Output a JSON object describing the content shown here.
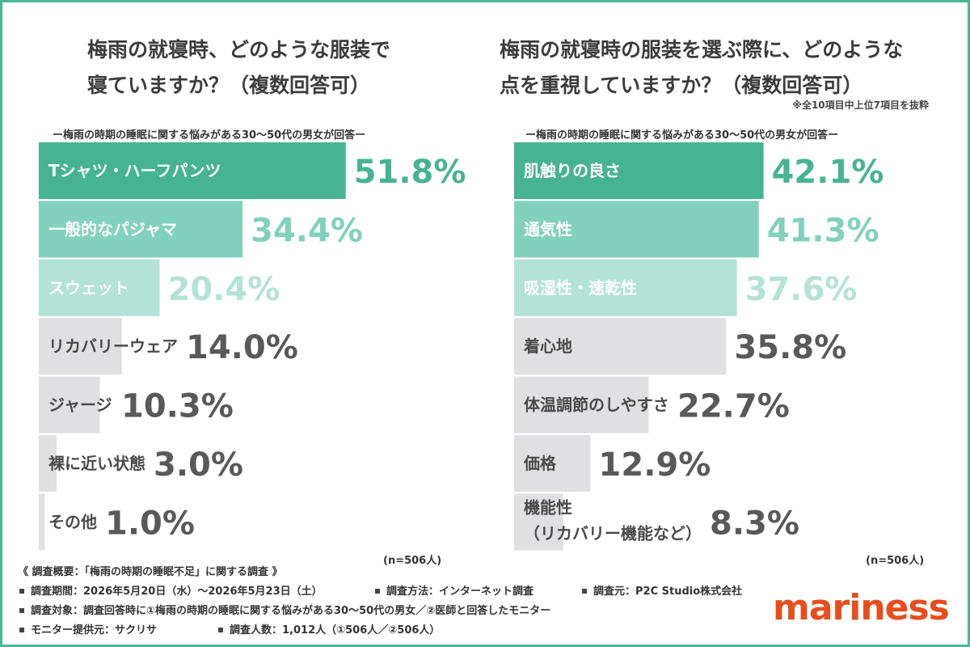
{
  "colors": {
    "border": "#4db79a",
    "logo": "#e64e1e"
  },
  "left_chart": {
    "title": "梅雨の就寝時、どのような服装で\n寝ていますか？（複数回答可）",
    "subtitle": "ー梅雨の時期の睡眠に関する悩みがある30〜50代の男女が回答ー",
    "n_label": "(n=506人)"
  },
  "right_chart": {
    "title": "梅雨の就寝時の服装を選ぶ際に、どのような\n点を重視していますか？（複数回答可）",
    "note": "※全10項目中上位7項目を抜粋",
    "subtitle": "ー梅雨の時期の睡眠に関する悩みがある30〜50代の男女が回答ー",
    "n_label": "(n=506人)"
  },
  "chart_data": [
    {
      "type": "bar",
      "orientation": "horizontal",
      "title": "梅雨の就寝時、どのような服装で寝ていますか？（複数回答可）",
      "categories": [
        "Tシャツ・ハーフパンツ",
        "一般的なパジャマ",
        "スウェット",
        "リカバリーウェア",
        "ジャージ",
        "裸に近い状態",
        "その他"
      ],
      "values": [
        51.8,
        34.4,
        20.4,
        14.0,
        10.3,
        3.0,
        1.0
      ],
      "value_labels": [
        "51.8%",
        "34.4%",
        "20.4%",
        "14.0%",
        "10.3%",
        "3.0%",
        "1.0%"
      ],
      "bar_colors": [
        "#46b492",
        "#82d1bc",
        "#b3e3d6",
        "#e0dfe1",
        "#e0dfe1",
        "#e0dfe1",
        "#e0dfe1"
      ],
      "label_colors": [
        "#ffffff",
        "#ffffff",
        "#ffffff",
        "#4a4a4a",
        "#4a4a4a",
        "#4a4a4a",
        "#4a4a4a"
      ],
      "value_colors": [
        "#46b492",
        "#82d1bc",
        "#b3e3d6",
        "#595959",
        "#595959",
        "#595959",
        "#595959"
      ],
      "xlim": [
        0,
        100
      ],
      "grid": false
    },
    {
      "type": "bar",
      "orientation": "horizontal",
      "title": "梅雨の就寝時の服装を選ぶ際に、どのような点を重視していますか？（複数回答可）",
      "categories": [
        "肌触りの良さ",
        "通気性",
        "吸湿性・速乾性",
        "着心地",
        "体温調節のしやすさ",
        "価格",
        "機能性\n（リカバリー機能など）"
      ],
      "values": [
        42.1,
        41.3,
        37.6,
        35.8,
        22.7,
        12.9,
        8.3
      ],
      "value_labels": [
        "42.1%",
        "41.3%",
        "37.6%",
        "35.8%",
        "22.7%",
        "12.9%",
        "8.3%"
      ],
      "bar_colors": [
        "#46b492",
        "#82d1bc",
        "#b3e3d6",
        "#e0dfe1",
        "#e0dfe1",
        "#e0dfe1",
        "#e0dfe1"
      ],
      "label_colors": [
        "#ffffff",
        "#ffffff",
        "#ffffff",
        "#4a4a4a",
        "#4a4a4a",
        "#4a4a4a",
        "#4a4a4a"
      ],
      "value_colors": [
        "#46b492",
        "#82d1bc",
        "#b3e3d6",
        "#595959",
        "#595959",
        "#595959",
        "#595959"
      ],
      "xlim": [
        0,
        100
      ],
      "grid": false
    }
  ],
  "footer": {
    "summary": "《 調査概要：「梅雨の時期の睡眠不足」に関する調査 》",
    "period": "調査期間：2026年5月20日（水）〜2026年5月23日（土）",
    "method": "調査方法：インターネット調査",
    "source": "調査元：P2C Studio株式会社",
    "target": "調査対象：調査回答時に①梅雨の時期の睡眠に関する悩みがある30〜50代の男女／②医師と回答したモニター",
    "provider": "モニター提供元：サクリサ",
    "count": "調査人数：1,012人（①506人／②506人）"
  },
  "logo": {
    "text": "mariness"
  }
}
